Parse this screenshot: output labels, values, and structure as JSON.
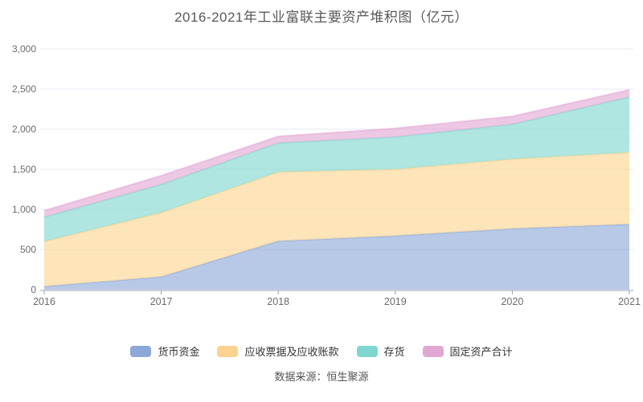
{
  "title": "2016-2021年工业富联主要资产堆积图（亿元）",
  "source": "数据来源：恒生聚源",
  "chart_data": {
    "type": "area",
    "stacked": true,
    "title": "2016-2021年工业富联主要资产堆积图（亿元）",
    "categories": [
      "2016",
      "2017",
      "2018",
      "2019",
      "2020",
      "2021"
    ],
    "series": [
      {
        "name": "货币资金",
        "color": "#8ba8d8",
        "values": [
          40,
          160,
          605,
          670,
          760,
          815
        ]
      },
      {
        "name": "应收票据及应收账款",
        "color": "#fbd38e",
        "values": [
          560,
          800,
          860,
          830,
          867,
          895
        ]
      },
      {
        "name": "存货",
        "color": "#7ed6cf",
        "values": [
          305,
          350,
          362,
          403,
          433,
          690
        ]
      },
      {
        "name": "固定资产合计",
        "color": "#e2a6d3",
        "values": [
          80,
          110,
          83,
          107,
          100,
          90
        ]
      }
    ],
    "ylim": [
      0,
      3000
    ],
    "ytick_step": 500,
    "ytick_labels": [
      "0",
      "500",
      "1,000",
      "1,500",
      "2,000",
      "2,500",
      "3,000"
    ],
    "grid": true,
    "legend_position": "bottom",
    "axis_colors": {
      "grid_line": "#e4e8f1",
      "axis_line": "#98a0b0",
      "tick_label": "#6b6b6b"
    }
  }
}
